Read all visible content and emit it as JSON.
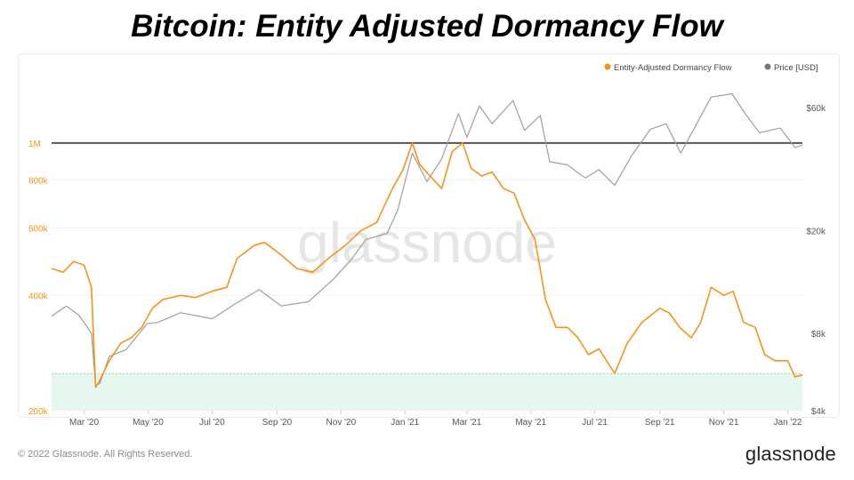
{
  "title": "Bitcoin: Entity Adjusted Dormancy Flow",
  "footer": {
    "copyright": "© 2022 Glassnode. All Rights Reserved.",
    "logo": "glassnode"
  },
  "watermark": "glassnode",
  "colors": {
    "flow": "#f7931a",
    "price": "#9e9e9e",
    "refline": "#555555",
    "zone": "#e6f7f0",
    "zone_border": "#8fd4b4"
  },
  "chart_data": {
    "type": "line",
    "title": "Bitcoin: Entity Adjusted Dormancy Flow",
    "legend": {
      "position": "top-right",
      "items": [
        "Entity-Adjusted Dormancy Flow",
        "Price [USD]"
      ]
    },
    "x_ticks": [
      "Mar '20",
      "May '20",
      "Jul '20",
      "Sep '20",
      "Nov '20",
      "Jan '21",
      "Mar '21",
      "May '21",
      "Jul '21",
      "Sep '21",
      "Nov '21",
      "Jan '22"
    ],
    "x_range": [
      "2020-01-30",
      "2022-01-15"
    ],
    "y_left": {
      "scale": "log",
      "ticks": [
        "200k",
        "400k",
        "600k",
        "800k",
        "1M"
      ],
      "range": [
        200000,
        1500000
      ]
    },
    "y_right": {
      "scale": "log",
      "ticks": [
        "$4k",
        "$8k",
        "$20k",
        "$60k"
      ],
      "range": [
        4000,
        80000
      ]
    },
    "reference_line": {
      "value": 1000000,
      "label": "1M"
    },
    "buy_zone": {
      "from": 200000,
      "to": 250000
    },
    "series": [
      {
        "name": "Entity-Adjusted Dormancy Flow",
        "axis": "left",
        "points": [
          [
            "2020-01-30",
            470000
          ],
          [
            "2020-02-10",
            460000
          ],
          [
            "2020-02-20",
            490000
          ],
          [
            "2020-03-01",
            480000
          ],
          [
            "2020-03-08",
            420000
          ],
          [
            "2020-03-12",
            230000
          ],
          [
            "2020-03-16",
            240000
          ],
          [
            "2020-03-25",
            270000
          ],
          [
            "2020-04-05",
            300000
          ],
          [
            "2020-04-15",
            310000
          ],
          [
            "2020-04-25",
            330000
          ],
          [
            "2020-05-05",
            370000
          ],
          [
            "2020-05-15",
            390000
          ],
          [
            "2020-06-01",
            400000
          ],
          [
            "2020-06-15",
            395000
          ],
          [
            "2020-07-01",
            410000
          ],
          [
            "2020-07-15",
            420000
          ],
          [
            "2020-07-25",
            500000
          ],
          [
            "2020-08-10",
            540000
          ],
          [
            "2020-08-20",
            550000
          ],
          [
            "2020-09-05",
            510000
          ],
          [
            "2020-09-20",
            470000
          ],
          [
            "2020-10-05",
            460000
          ],
          [
            "2020-10-20",
            500000
          ],
          [
            "2020-11-05",
            540000
          ],
          [
            "2020-11-20",
            590000
          ],
          [
            "2020-12-05",
            620000
          ],
          [
            "2020-12-20",
            760000
          ],
          [
            "2020-12-30",
            850000
          ],
          [
            "2021-01-08",
            1000000
          ],
          [
            "2021-01-15",
            880000
          ],
          [
            "2021-01-25",
            820000
          ],
          [
            "2021-02-05",
            760000
          ],
          [
            "2021-02-15",
            950000
          ],
          [
            "2021-02-25",
            1000000
          ],
          [
            "2021-03-05",
            860000
          ],
          [
            "2021-03-15",
            820000
          ],
          [
            "2021-03-25",
            840000
          ],
          [
            "2021-04-05",
            760000
          ],
          [
            "2021-04-15",
            740000
          ],
          [
            "2021-04-25",
            630000
          ],
          [
            "2021-05-05",
            560000
          ],
          [
            "2021-05-15",
            390000
          ],
          [
            "2021-05-25",
            330000
          ],
          [
            "2021-06-05",
            330000
          ],
          [
            "2021-06-15",
            310000
          ],
          [
            "2021-06-25",
            280000
          ],
          [
            "2021-07-05",
            290000
          ],
          [
            "2021-07-20",
            250000
          ],
          [
            "2021-08-01",
            300000
          ],
          [
            "2021-08-15",
            340000
          ],
          [
            "2021-09-01",
            370000
          ],
          [
            "2021-09-10",
            360000
          ],
          [
            "2021-09-20",
            330000
          ],
          [
            "2021-10-01",
            310000
          ],
          [
            "2021-10-10",
            340000
          ],
          [
            "2021-10-20",
            420000
          ],
          [
            "2021-11-01",
            400000
          ],
          [
            "2021-11-10",
            410000
          ],
          [
            "2021-11-20",
            340000
          ],
          [
            "2021-12-01",
            330000
          ],
          [
            "2021-12-10",
            280000
          ],
          [
            "2021-12-20",
            270000
          ],
          [
            "2022-01-01",
            270000
          ],
          [
            "2022-01-08",
            245000
          ],
          [
            "2022-01-15",
            248000
          ]
        ]
      },
      {
        "name": "Price [USD]",
        "axis": "right",
        "points": [
          [
            "2020-01-30",
            9300
          ],
          [
            "2020-02-13",
            10200
          ],
          [
            "2020-02-25",
            9400
          ],
          [
            "2020-03-08",
            8000
          ],
          [
            "2020-03-12",
            5000
          ],
          [
            "2020-03-16",
            5100
          ],
          [
            "2020-03-25",
            6500
          ],
          [
            "2020-04-10",
            6900
          ],
          [
            "2020-04-30",
            8700
          ],
          [
            "2020-05-10",
            8800
          ],
          [
            "2020-06-01",
            9600
          ],
          [
            "2020-07-01",
            9100
          ],
          [
            "2020-07-25",
            10500
          ],
          [
            "2020-08-15",
            11800
          ],
          [
            "2020-09-05",
            10200
          ],
          [
            "2020-10-01",
            10600
          ],
          [
            "2020-10-25",
            13000
          ],
          [
            "2020-11-10",
            15300
          ],
          [
            "2020-11-25",
            18500
          ],
          [
            "2020-12-15",
            19500
          ],
          [
            "2020-12-25",
            24000
          ],
          [
            "2021-01-08",
            40000
          ],
          [
            "2021-01-22",
            31000
          ],
          [
            "2021-02-05",
            38000
          ],
          [
            "2021-02-21",
            57000
          ],
          [
            "2021-03-01",
            46000
          ],
          [
            "2021-03-13",
            61000
          ],
          [
            "2021-03-25",
            52000
          ],
          [
            "2021-04-14",
            64000
          ],
          [
            "2021-04-25",
            49000
          ],
          [
            "2021-05-10",
            56000
          ],
          [
            "2021-05-19",
            37000
          ],
          [
            "2021-06-05",
            36000
          ],
          [
            "2021-06-22",
            32000
          ],
          [
            "2021-07-05",
            34500
          ],
          [
            "2021-07-20",
            30000
          ],
          [
            "2021-08-05",
            39000
          ],
          [
            "2021-08-23",
            49500
          ],
          [
            "2021-09-07",
            52000
          ],
          [
            "2021-09-21",
            40000
          ],
          [
            "2021-10-05",
            51000
          ],
          [
            "2021-10-20",
            66000
          ],
          [
            "2021-11-09",
            68000
          ],
          [
            "2021-11-20",
            58000
          ],
          [
            "2021-12-05",
            48000
          ],
          [
            "2021-12-25",
            50000
          ],
          [
            "2022-01-08",
            42000
          ],
          [
            "2022-01-15",
            43000
          ]
        ]
      }
    ]
  }
}
